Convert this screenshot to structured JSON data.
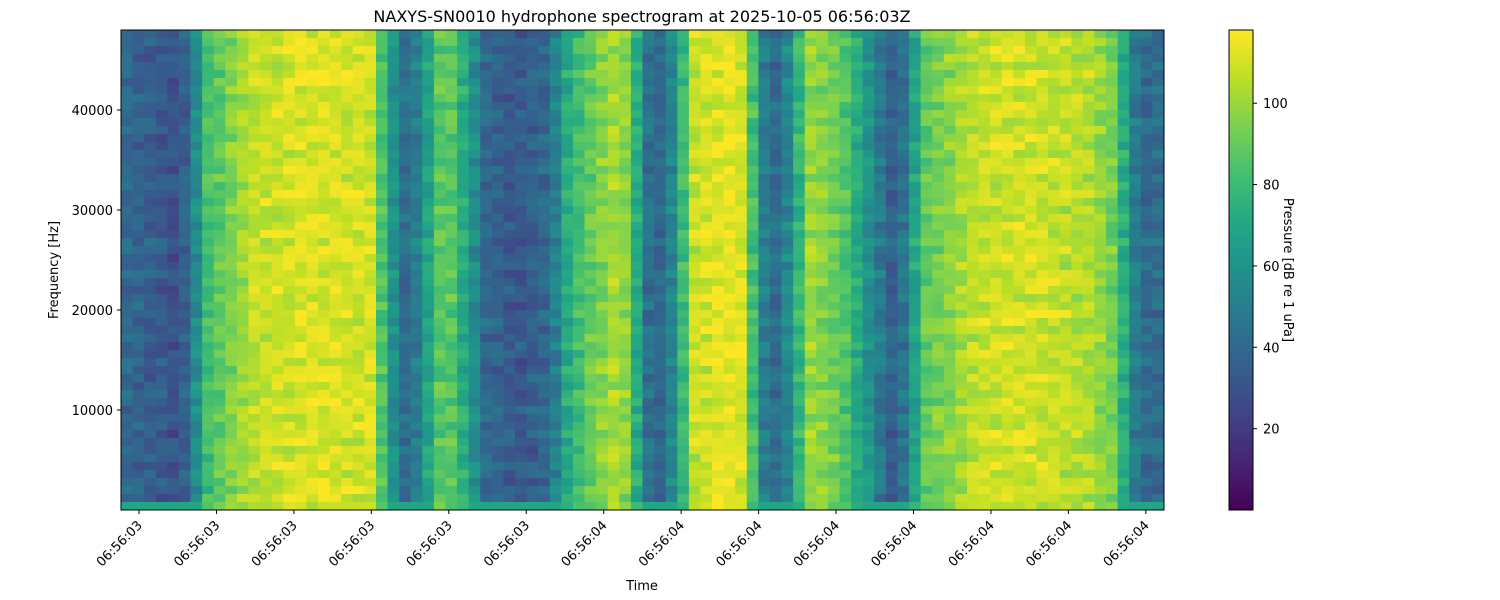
{
  "chart_data": {
    "type": "heatmap",
    "title": "NAXYS-SN0010 hydrophone spectrogram at 2025-10-05 06:56:03Z",
    "xlabel": "Time",
    "ylabel": "Frequency [Hz]",
    "x_tick_labels": [
      "06:56:03",
      "06:56:03",
      "06:56:03",
      "06:56:03",
      "06:56:03",
      "06:56:03",
      "06:56:04",
      "06:56:04",
      "06:56:04",
      "06:56:04",
      "06:56:04",
      "06:56:04",
      "06:56:04",
      "06:56:04"
    ],
    "y_ticks": [
      10000,
      20000,
      30000,
      40000
    ],
    "ylim": [
      0,
      48000
    ],
    "colormap": "viridis",
    "colorbar": {
      "label": "Pressure [dB re 1 uPa]",
      "ticks": [
        20,
        40,
        60,
        80,
        100
      ],
      "range": [
        0,
        118
      ]
    },
    "time_profile": [
      {
        "t": 0.0,
        "db": 40
      },
      {
        "t": 0.03,
        "db": 35
      },
      {
        "t": 0.05,
        "db": 30
      },
      {
        "t": 0.065,
        "db": 38
      },
      {
        "t": 0.08,
        "db": 80
      },
      {
        "t": 0.1,
        "db": 92
      },
      {
        "t": 0.13,
        "db": 108
      },
      {
        "t": 0.18,
        "db": 112
      },
      {
        "t": 0.24,
        "db": 110
      },
      {
        "t": 0.26,
        "db": 60
      },
      {
        "t": 0.275,
        "db": 38
      },
      {
        "t": 0.29,
        "db": 60
      },
      {
        "t": 0.31,
        "db": 95
      },
      {
        "t": 0.33,
        "db": 70
      },
      {
        "t": 0.35,
        "db": 40
      },
      {
        "t": 0.38,
        "db": 32
      },
      {
        "t": 0.41,
        "db": 40
      },
      {
        "t": 0.43,
        "db": 75
      },
      {
        "t": 0.47,
        "db": 102
      },
      {
        "t": 0.49,
        "db": 95
      },
      {
        "t": 0.5,
        "db": 45
      },
      {
        "t": 0.52,
        "db": 38
      },
      {
        "t": 0.535,
        "db": 70
      },
      {
        "t": 0.55,
        "db": 108
      },
      {
        "t": 0.58,
        "db": 115
      },
      {
        "t": 0.6,
        "db": 110
      },
      {
        "t": 0.61,
        "db": 60
      },
      {
        "t": 0.625,
        "db": 38
      },
      {
        "t": 0.64,
        "db": 55
      },
      {
        "t": 0.66,
        "db": 100
      },
      {
        "t": 0.69,
        "db": 90
      },
      {
        "t": 0.71,
        "db": 68
      },
      {
        "t": 0.73,
        "db": 45
      },
      {
        "t": 0.74,
        "db": 35
      },
      {
        "t": 0.75,
        "db": 45
      },
      {
        "t": 0.77,
        "db": 88
      },
      {
        "t": 0.82,
        "db": 108
      },
      {
        "t": 0.87,
        "db": 110
      },
      {
        "t": 0.93,
        "db": 104
      },
      {
        "t": 0.955,
        "db": 90
      },
      {
        "t": 0.97,
        "db": 50
      },
      {
        "t": 0.985,
        "db": 40
      },
      {
        "t": 1.0,
        "db": 42
      }
    ]
  }
}
